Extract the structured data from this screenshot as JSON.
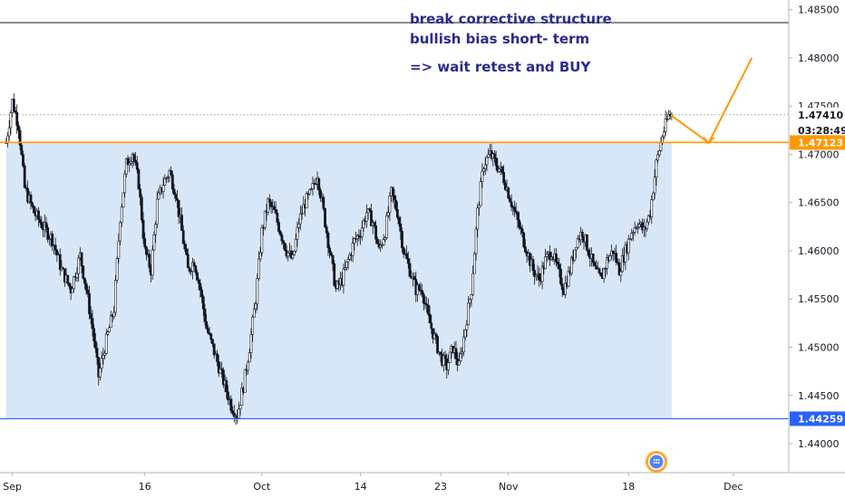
{
  "chart_data": {
    "type": "candlestick",
    "instrument_note": "",
    "x_ticks": [
      "Sep",
      "16",
      "Oct",
      "14",
      "23",
      "Nov",
      "18",
      "Dec"
    ],
    "y_ticks": [
      "1.48500",
      "1.48000",
      "1.47500",
      "1.47000",
      "1.46500",
      "1.46000",
      "1.45500",
      "1.45000",
      "1.44500",
      "1.44000"
    ],
    "ylim": [
      1.437,
      1.486
    ],
    "annotations": [
      "break corrective structure",
      "bullish bias short- term",
      "=> wait retest and BUY"
    ],
    "levels": {
      "resistance": {
        "value": 1.47123,
        "label": "1.47123",
        "color": "#ff9800"
      },
      "support": {
        "value": 1.44259,
        "label": "1.44259",
        "color": "#2962ff"
      }
    },
    "current_price": {
      "value": 1.4741,
      "label": "1.47410"
    },
    "countdown": "03:28:49",
    "range_box_color": "#d6e6f7",
    "projection_color": "#ff9800",
    "candle_color": "#131722",
    "path_points": [
      [
        0,
        1.4712
      ],
      [
        2,
        1.4755
      ],
      [
        4,
        1.473
      ],
      [
        6,
        1.4665
      ],
      [
        9,
        1.464
      ],
      [
        12,
        1.4625
      ],
      [
        15,
        1.4612
      ],
      [
        18,
        1.458
      ],
      [
        21,
        1.456
      ],
      [
        24,
        1.4595
      ],
      [
        26,
        1.456
      ],
      [
        28,
        1.452
      ],
      [
        30,
        1.447
      ],
      [
        32,
        1.45
      ],
      [
        35,
        1.454
      ],
      [
        37,
        1.4635
      ],
      [
        39,
        1.469
      ],
      [
        41,
        1.4702
      ],
      [
        43,
        1.467
      ],
      [
        45,
        1.46
      ],
      [
        47,
        1.458
      ],
      [
        49,
        1.465
      ],
      [
        51,
        1.467
      ],
      [
        53,
        1.4682
      ],
      [
        55,
        1.466
      ],
      [
        57,
        1.462
      ],
      [
        59,
        1.458
      ],
      [
        61,
        1.459
      ],
      [
        63,
        1.456
      ],
      [
        65,
        1.452
      ],
      [
        67,
        1.45
      ],
      [
        69,
        1.448
      ],
      [
        71,
        1.446
      ],
      [
        73,
        1.444
      ],
      [
        75,
        1.443
      ],
      [
        77,
        1.446
      ],
      [
        79,
        1.45
      ],
      [
        81,
        1.455
      ],
      [
        83,
        1.462
      ],
      [
        85,
        1.465
      ],
      [
        87,
        1.464
      ],
      [
        89,
        1.462
      ],
      [
        91,
        1.46
      ],
      [
        93,
        1.459
      ],
      [
        95,
        1.463
      ],
      [
        97,
        1.465
      ],
      [
        99,
        1.466
      ],
      [
        101,
        1.468
      ],
      [
        103,
        1.464
      ],
      [
        105,
        1.46
      ],
      [
        107,
        1.456
      ],
      [
        109,
        1.457
      ],
      [
        111,
        1.459
      ],
      [
        113,
        1.461
      ],
      [
        115,
        1.462
      ],
      [
        117,
        1.464
      ],
      [
        119,
        1.463
      ],
      [
        121,
        1.46
      ],
      [
        123,
        1.462
      ],
      [
        125,
        1.466
      ],
      [
        127,
        1.464
      ],
      [
        129,
        1.46
      ],
      [
        131,
        1.458
      ],
      [
        133,
        1.456
      ],
      [
        135,
        1.456
      ],
      [
        137,
        1.453
      ],
      [
        139,
        1.451
      ],
      [
        141,
        1.449
      ],
      [
        143,
        1.448
      ],
      [
        145,
        1.45
      ],
      [
        147,
        1.448
      ],
      [
        149,
        1.452
      ],
      [
        151,
        1.456
      ],
      [
        153,
        1.464
      ],
      [
        155,
        1.469
      ],
      [
        157,
        1.47
      ],
      [
        159,
        1.469
      ],
      [
        161,
        1.468
      ],
      [
        163,
        1.466
      ],
      [
        165,
        1.464
      ],
      [
        167,
        1.462
      ],
      [
        169,
        1.46
      ],
      [
        171,
        1.458
      ],
      [
        173,
        1.457
      ],
      [
        175,
        1.459
      ],
      [
        177,
        1.46
      ],
      [
        179,
        1.458
      ],
      [
        181,
        1.456
      ],
      [
        183,
        1.458
      ],
      [
        185,
        1.461
      ],
      [
        187,
        1.462
      ],
      [
        189,
        1.46
      ],
      [
        191,
        1.458
      ],
      [
        193,
        1.457
      ],
      [
        195,
        1.459
      ],
      [
        197,
        1.46
      ],
      [
        199,
        1.458
      ],
      [
        201,
        1.46
      ],
      [
        203,
        1.462
      ],
      [
        205,
        1.463
      ],
      [
        207,
        1.462
      ],
      [
        209,
        1.464
      ],
      [
        211,
        1.469
      ],
      [
        213,
        1.472
      ],
      [
        215,
        1.474
      ],
      [
        216,
        1.4741
      ]
    ],
    "x_tick_index": [
      2,
      45,
      83,
      115,
      141,
      163,
      202,
      236
    ],
    "x_index_range": [
      -2,
      254
    ],
    "range_box_index": [
      0,
      216
    ],
    "projection": [
      [
        216,
        1.474
      ],
      [
        228,
        1.4712
      ],
      [
        242,
        1.48
      ]
    ]
  }
}
